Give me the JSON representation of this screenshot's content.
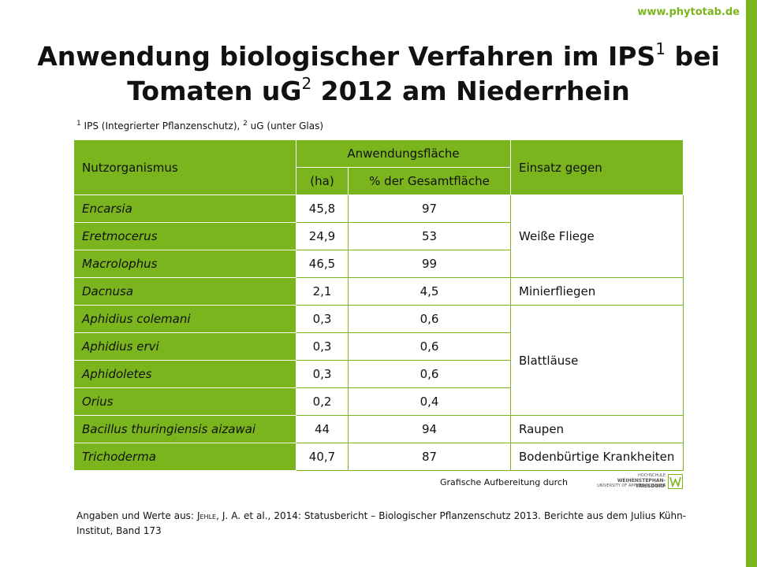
{
  "site": {
    "url": "www.phytotab.de"
  },
  "title": {
    "part1": "Anwendung biologischer Verfahren im IPS",
    "sup1": "1",
    "part2": " bei",
    "part3": "Tomaten uG",
    "sup2": "2",
    "part4": " 2012 am Niederrhein"
  },
  "footnote": {
    "n1": "1",
    "t1": " IPS (Integrierter Pflanzenschutz), ",
    "n2": "2",
    "t2": " uG (unter Glas)"
  },
  "table": {
    "headers": {
      "organism": "Nutzorganismus",
      "area_group": "Anwendungsfläche",
      "ha": "(ha)",
      "percent": "% der Gesamtfläche",
      "use": "Einsatz gegen"
    },
    "rows": [
      {
        "organism": "Encarsia",
        "ha": "45,8",
        "percent": "97"
      },
      {
        "organism": "Eretmocerus",
        "ha": "24,9",
        "percent": "53"
      },
      {
        "organism": "Macrolophus",
        "ha": "46,5",
        "percent": "99"
      },
      {
        "organism": "Dacnusa",
        "ha": "2,1",
        "percent": "4,5"
      },
      {
        "organism": "Aphidius colemani",
        "ha": "0,3",
        "percent": "0,6"
      },
      {
        "organism": "Aphidius ervi",
        "ha": "0,3",
        "percent": "0,6"
      },
      {
        "organism": "Aphidoletes",
        "ha": "0,3",
        "percent": "0,6"
      },
      {
        "organism": "Orius",
        "ha": "0,2",
        "percent": "0,4"
      },
      {
        "organism": "Bacillus thuringiensis aizawai",
        "ha": "44",
        "percent": "94"
      },
      {
        "organism": "Trichoderma",
        "ha": "40,7",
        "percent": "87"
      }
    ],
    "targets": {
      "whitefly": "Weiße Fliege",
      "leafminer": "Minierfliegen",
      "aphids": "Blattläuse",
      "caterpillars": "Raupen",
      "soilborne": "Bodenbürtige Krankheiten"
    }
  },
  "credit": {
    "text": "Grafische Aufbereitung durch",
    "logo_line1": "HOCHSCHULE",
    "logo_line2": "WEIHENSTEPHAN-TRIESDORF",
    "logo_line3": "UNIVERSITY OF APPLIED SCIENCES"
  },
  "source": {
    "prefix": "Angaben und Werte aus: ",
    "author": "Jehle",
    "rest": ", J. A. et al., 2014: Statusbericht – Biologischer Pflanzenschutz 2013. Berichte aus dem Julius Kühn-Institut, Band 173"
  },
  "colors": {
    "accent": "#7ab51d"
  }
}
